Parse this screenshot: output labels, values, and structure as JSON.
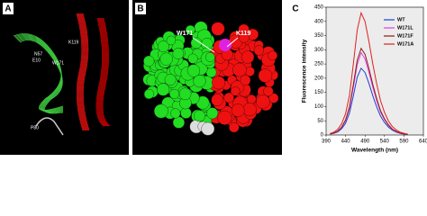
{
  "panel_labels": [
    "A",
    "B"
  ],
  "annotations_a": [
    "K119",
    "N57",
    "E10",
    "W171",
    "P80"
  ],
  "annotations_b": [
    "W171",
    "K119"
  ],
  "chart_data": {
    "type": "line",
    "panel_label": "C",
    "x_label": "Wavelength (nm)",
    "y_label": "Fluorescence intensity",
    "x": [
      400,
      410,
      420,
      430,
      440,
      450,
      460,
      470,
      480,
      490,
      500,
      510,
      520,
      530,
      540,
      550,
      560,
      570,
      580,
      590,
      600
    ],
    "series": [
      {
        "name": "WT",
        "color": "#1f3fd0",
        "values": [
          3,
          6,
          11,
          22,
          41,
          77,
          138,
          204,
          235,
          220,
          182,
          138,
          99,
          66,
          44,
          28,
          17,
          10,
          6,
          3,
          2
        ]
      },
      {
        "name": "W171L",
        "color": "#e040e0",
        "values": [
          3,
          7,
          13,
          27,
          50,
          94,
          168,
          248,
          290,
          268,
          221,
          168,
          121,
          80,
          54,
          34,
          20,
          12,
          7,
          4,
          2
        ]
      },
      {
        "name": "W171F",
        "color": "#8b1a1a",
        "values": [
          4,
          7,
          14,
          28,
          53,
          99,
          178,
          263,
          305,
          284,
          234,
          178,
          128,
          85,
          57,
          36,
          21,
          13,
          7,
          4,
          2
        ]
      },
      {
        "name": "W171A",
        "color": "#e02020",
        "values": [
          5,
          10,
          20,
          40,
          75,
          140,
          250,
          370,
          430,
          400,
          330,
          250,
          180,
          120,
          80,
          50,
          30,
          18,
          10,
          6,
          3
        ]
      }
    ],
    "xlim": [
      390,
      640
    ],
    "xticks": [
      390,
      440,
      490,
      540,
      590,
      640
    ],
    "ylim": [
      0,
      450
    ],
    "yticks": [
      0,
      50,
      100,
      150,
      200,
      250,
      300,
      350,
      400,
      450
    ],
    "legend": "upper right"
  }
}
